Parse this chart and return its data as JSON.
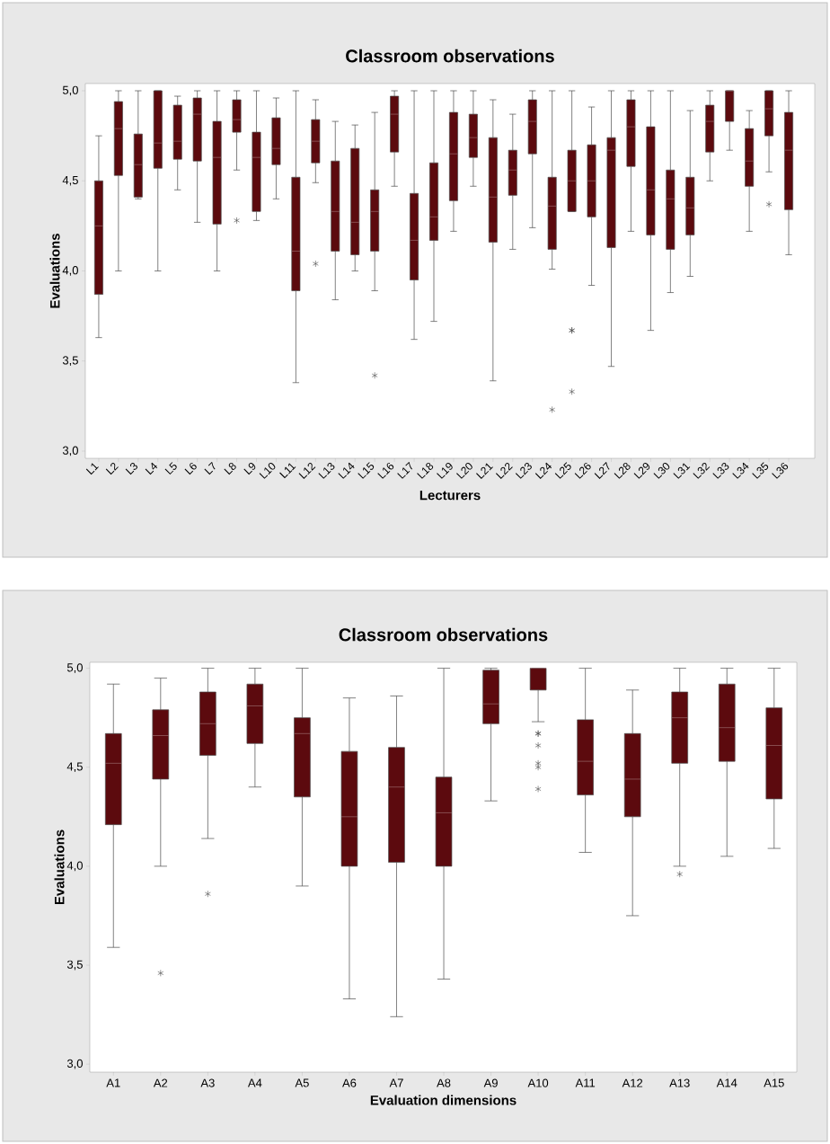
{
  "chart_data": [
    {
      "type": "box",
      "title": "Classroom observations",
      "xlabel": "Lecturers",
      "ylabel": "Evaluations",
      "color": "#5c0a0e",
      "categories": [
        "L1",
        "L2",
        "L3",
        "L4",
        "L5",
        "L6",
        "L7",
        "L8",
        "L9",
        "L10",
        "L11",
        "L12",
        "L13",
        "L14",
        "L15",
        "L16",
        "L17",
        "L18",
        "L19",
        "L20",
        "L21",
        "L22",
        "L23",
        "L24",
        "L25",
        "L26",
        "L27",
        "L28",
        "L29",
        "L30",
        "L31",
        "L32",
        "L33",
        "L34",
        "L35",
        "L36"
      ],
      "ylim": [
        2.96,
        5.04
      ],
      "yticks": [
        {
          "value": 3.0,
          "label": "3,0"
        },
        {
          "value": 3.5,
          "label": "3,5"
        },
        {
          "value": 4.0,
          "label": "4,0"
        },
        {
          "value": 4.5,
          "label": "4,5"
        },
        {
          "value": 5.0,
          "label": "5,0"
        }
      ],
      "boxes": [
        {
          "low": 3.63,
          "q1": 3.87,
          "median": 4.25,
          "q3": 4.5,
          "high": 4.75
        },
        {
          "low": 4.0,
          "q1": 4.53,
          "median": 4.79,
          "q3": 4.94,
          "high": 5.0
        },
        {
          "low": 4.4,
          "q1": 4.41,
          "median": 4.59,
          "q3": 4.76,
          "high": 5.0
        },
        {
          "low": 4.0,
          "q1": 4.57,
          "median": 4.71,
          "q3": 5.0,
          "high": 5.0
        },
        {
          "low": 4.45,
          "q1": 4.62,
          "median": 4.72,
          "q3": 4.92,
          "high": 4.97
        },
        {
          "low": 4.27,
          "q1": 4.61,
          "median": 4.87,
          "q3": 4.96,
          "high": 5.0
        },
        {
          "low": 4.0,
          "q1": 4.26,
          "median": 4.63,
          "q3": 4.83,
          "high": 5.0
        },
        {
          "low": 4.56,
          "q1": 4.77,
          "median": 4.84,
          "q3": 4.95,
          "high": 5.0,
          "outliers": [
            4.28
          ]
        },
        {
          "low": 4.28,
          "q1": 4.33,
          "median": 4.63,
          "q3": 4.77,
          "high": 5.0
        },
        {
          "low": 4.4,
          "q1": 4.59,
          "median": 4.68,
          "q3": 4.85,
          "high": 4.96
        },
        {
          "low": 3.38,
          "q1": 3.89,
          "median": 4.11,
          "q3": 4.52,
          "high": 5.0
        },
        {
          "low": 4.49,
          "q1": 4.6,
          "median": 4.72,
          "q3": 4.84,
          "high": 4.95,
          "outliers": [
            4.04
          ]
        },
        {
          "low": 3.84,
          "q1": 4.11,
          "median": 4.33,
          "q3": 4.61,
          "high": 4.83
        },
        {
          "low": 4.0,
          "q1": 4.09,
          "median": 4.27,
          "q3": 4.68,
          "high": 4.81
        },
        {
          "low": 3.89,
          "q1": 4.11,
          "median": 4.33,
          "q3": 4.45,
          "high": 4.88,
          "outliers": [
            3.42
          ]
        },
        {
          "low": 4.47,
          "q1": 4.66,
          "median": 4.87,
          "q3": 4.97,
          "high": 5.0
        },
        {
          "low": 3.62,
          "q1": 3.95,
          "median": 4.17,
          "q3": 4.43,
          "high": 5.0
        },
        {
          "low": 3.72,
          "q1": 4.17,
          "median": 4.3,
          "q3": 4.6,
          "high": 5.0
        },
        {
          "low": 4.22,
          "q1": 4.39,
          "median": 4.65,
          "q3": 4.88,
          "high": 5.0
        },
        {
          "low": 4.47,
          "q1": 4.63,
          "median": 4.74,
          "q3": 4.87,
          "high": 5.0
        },
        {
          "low": 3.39,
          "q1": 4.16,
          "median": 4.41,
          "q3": 4.74,
          "high": 4.95
        },
        {
          "low": 4.12,
          "q1": 4.42,
          "median": 4.56,
          "q3": 4.67,
          "high": 4.87
        },
        {
          "low": 4.24,
          "q1": 4.65,
          "median": 4.83,
          "q3": 4.95,
          "high": 5.0
        },
        {
          "low": 4.01,
          "q1": 4.12,
          "median": 4.36,
          "q3": 4.52,
          "high": 5.0,
          "outliers": [
            3.23
          ]
        },
        {
          "low": 4.33,
          "q1": 4.33,
          "median": 4.5,
          "q3": 4.67,
          "high": 5.0,
          "outliers": [
            3.67,
            3.67,
            3.33
          ]
        },
        {
          "low": 3.92,
          "q1": 4.3,
          "median": 4.5,
          "q3": 4.7,
          "high": 4.91
        },
        {
          "low": 3.47,
          "q1": 4.13,
          "median": 4.67,
          "q3": 4.74,
          "high": 5.0
        },
        {
          "low": 4.22,
          "q1": 4.58,
          "median": 4.8,
          "q3": 4.95,
          "high": 5.0
        },
        {
          "low": 3.67,
          "q1": 4.2,
          "median": 4.45,
          "q3": 4.8,
          "high": 5.0
        },
        {
          "low": 3.88,
          "q1": 4.12,
          "median": 4.4,
          "q3": 4.56,
          "high": 5.0
        },
        {
          "low": 3.97,
          "q1": 4.2,
          "median": 4.35,
          "q3": 4.52,
          "high": 4.89
        },
        {
          "low": 4.5,
          "q1": 4.66,
          "median": 4.83,
          "q3": 4.92,
          "high": 5.0
        },
        {
          "low": 4.67,
          "q1": 4.83,
          "median": 5.0,
          "q3": 5.0,
          "high": 5.0
        },
        {
          "low": 4.22,
          "q1": 4.47,
          "median": 4.61,
          "q3": 4.79,
          "high": 4.89
        },
        {
          "low": 4.55,
          "q1": 4.75,
          "median": 4.9,
          "q3": 5.0,
          "high": 5.0,
          "outliers": [
            4.37
          ]
        },
        {
          "low": 4.09,
          "q1": 4.34,
          "median": 4.67,
          "q3": 4.88,
          "high": 5.0
        }
      ]
    },
    {
      "type": "box",
      "title": "Classroom observations",
      "xlabel": "Evaluation dimensions",
      "ylabel": "Evaluations",
      "color": "#5c0a0e",
      "categories": [
        "A1",
        "A2",
        "A3",
        "A4",
        "A5",
        "A6",
        "A7",
        "A8",
        "A9",
        "A10",
        "A11",
        "A12",
        "A13",
        "A14",
        "A15"
      ],
      "ylim": [
        2.96,
        5.03
      ],
      "yticks": [
        {
          "value": 3.0,
          "label": "3,0"
        },
        {
          "value": 3.5,
          "label": "3,5"
        },
        {
          "value": 4.0,
          "label": "4,0"
        },
        {
          "value": 4.5,
          "label": "4,5"
        },
        {
          "value": 5.0,
          "label": "5,0"
        }
      ],
      "boxes": [
        {
          "low": 3.59,
          "q1": 4.21,
          "median": 4.52,
          "q3": 4.67,
          "high": 4.92
        },
        {
          "low": 4.0,
          "q1": 4.44,
          "median": 4.66,
          "q3": 4.79,
          "high": 4.95,
          "outliers": [
            3.46
          ]
        },
        {
          "low": 4.14,
          "q1": 4.56,
          "median": 4.72,
          "q3": 4.88,
          "high": 5.0,
          "outliers": [
            3.86
          ]
        },
        {
          "low": 4.4,
          "q1": 4.62,
          "median": 4.81,
          "q3": 4.92,
          "high": 5.0
        },
        {
          "low": 3.9,
          "q1": 4.35,
          "median": 4.67,
          "q3": 4.75,
          "high": 5.0
        },
        {
          "low": 3.33,
          "q1": 4.0,
          "median": 4.25,
          "q3": 4.58,
          "high": 4.85
        },
        {
          "low": 3.24,
          "q1": 4.02,
          "median": 4.4,
          "q3": 4.6,
          "high": 4.86
        },
        {
          "low": 3.43,
          "q1": 4.0,
          "median": 4.27,
          "q3": 4.45,
          "high": 5.0
        },
        {
          "low": 4.33,
          "q1": 4.72,
          "median": 4.82,
          "q3": 4.99,
          "high": 5.0
        },
        {
          "low": 4.73,
          "q1": 4.89,
          "median": 5.0,
          "q3": 5.0,
          "high": 5.0,
          "outliers": [
            4.67,
            4.67,
            4.61,
            4.52,
            4.5,
            4.39
          ]
        },
        {
          "low": 4.07,
          "q1": 4.36,
          "median": 4.53,
          "q3": 4.74,
          "high": 5.0
        },
        {
          "low": 3.75,
          "q1": 4.25,
          "median": 4.44,
          "q3": 4.67,
          "high": 4.89
        },
        {
          "low": 4.0,
          "q1": 4.52,
          "median": 4.75,
          "q3": 4.88,
          "high": 5.0,
          "outliers": [
            3.96
          ]
        },
        {
          "low": 4.05,
          "q1": 4.53,
          "median": 4.7,
          "q3": 4.92,
          "high": 5.0
        },
        {
          "low": 4.09,
          "q1": 4.34,
          "median": 4.61,
          "q3": 4.8,
          "high": 5.0
        }
      ]
    }
  ]
}
